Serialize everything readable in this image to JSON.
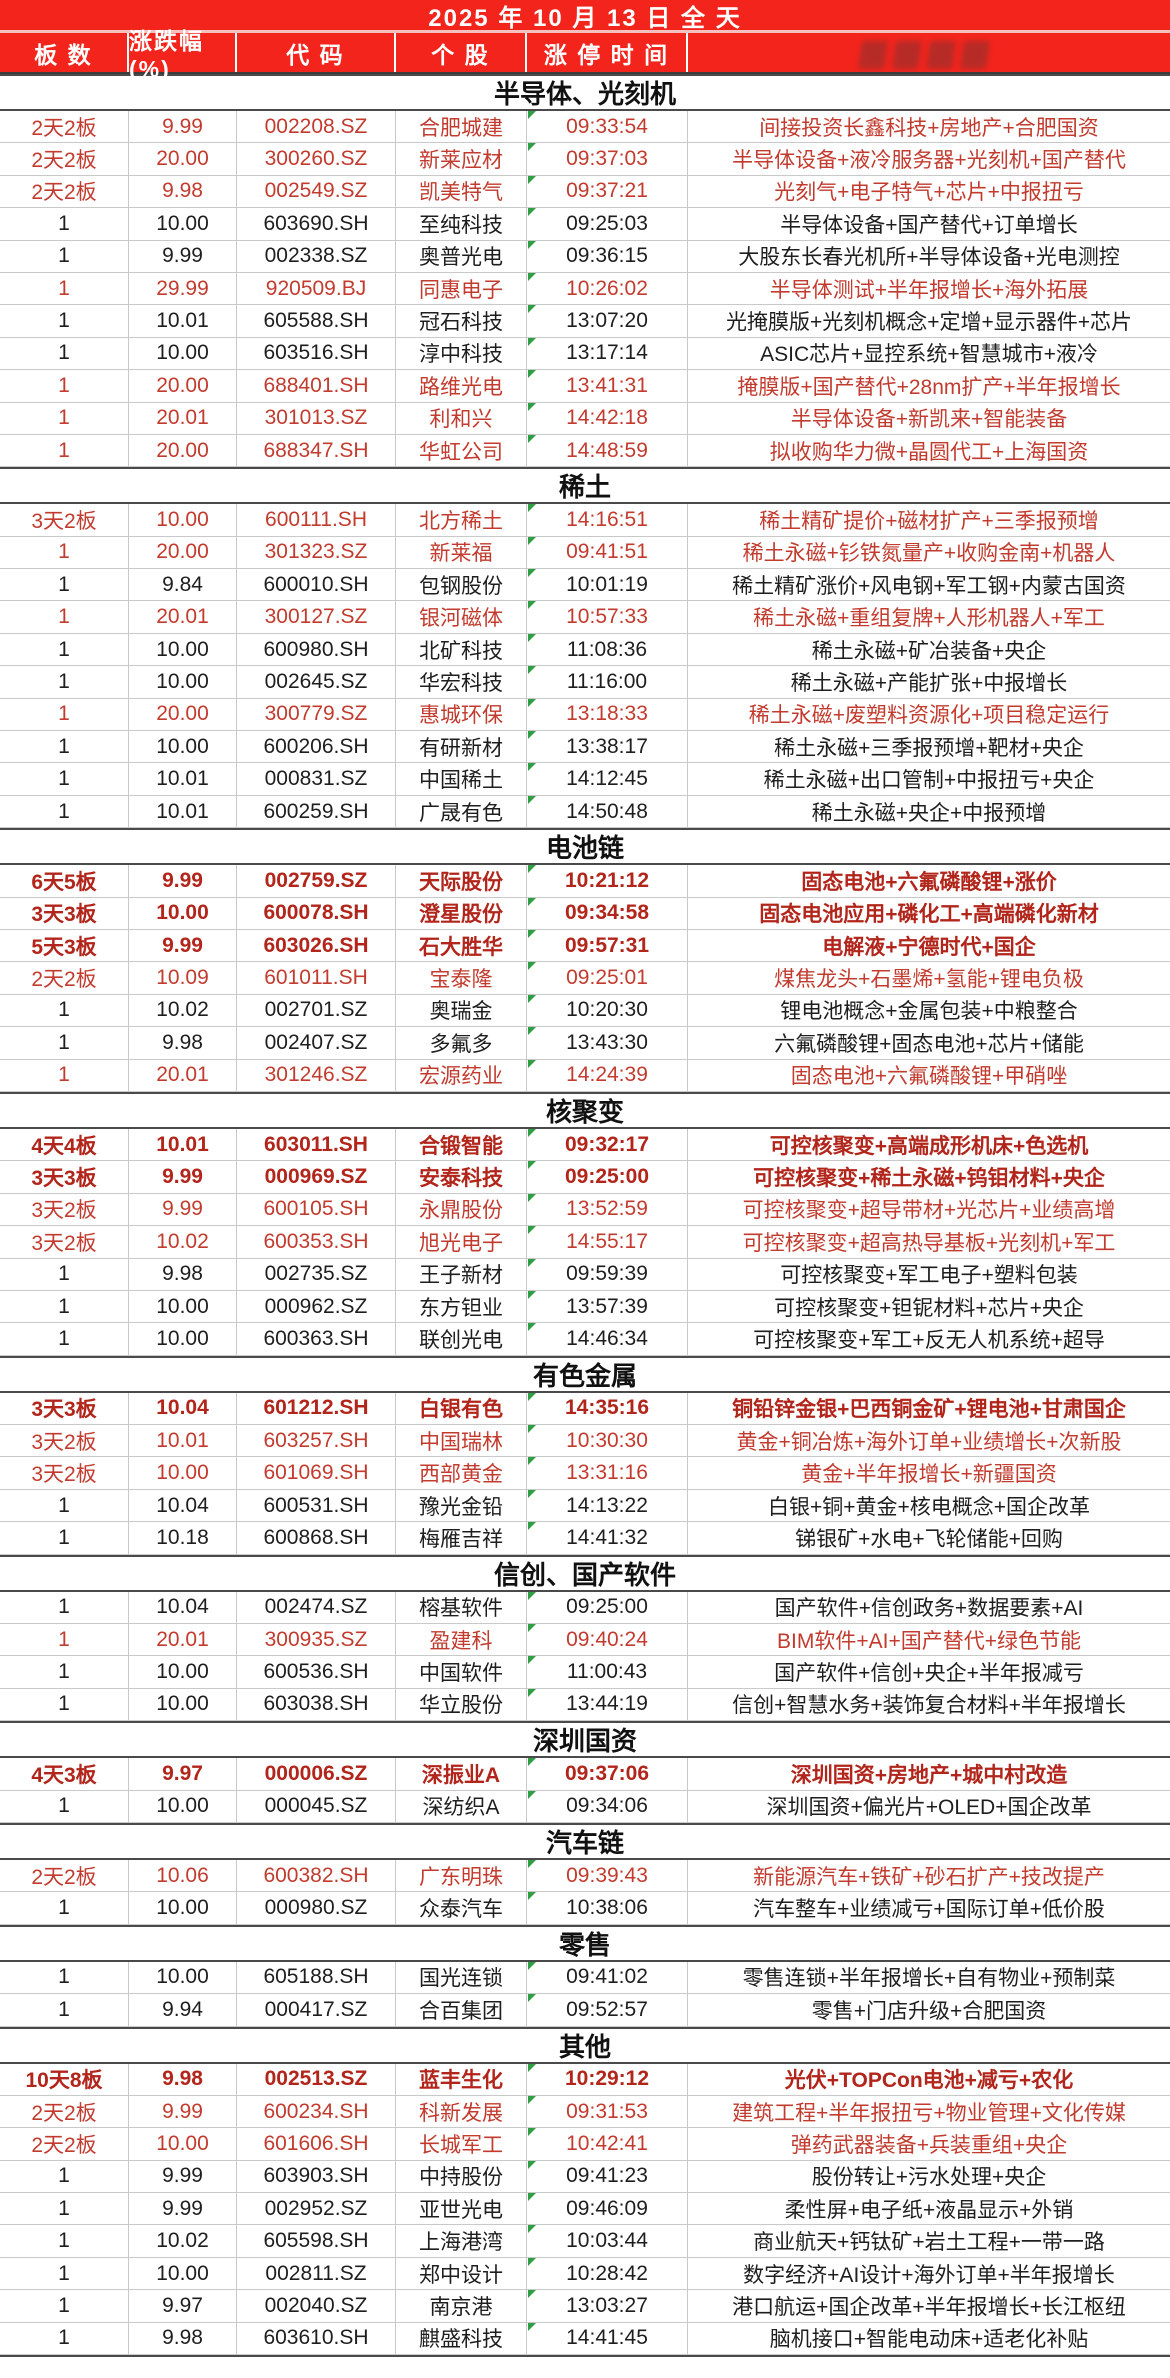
{
  "title": "2025 年 10 月 13 日 全 天",
  "columns": [
    "板 数",
    "涨跌幅(%)",
    "代 码",
    "个 股",
    "涨 停 时 间",
    ""
  ],
  "colors": {
    "header_bg": "#f3241c",
    "header_text": "#ffffff",
    "red_row_text": "#c23b2e",
    "red_bold_row_text": "#b2251b",
    "black_row_text": "#1e1e1e",
    "comment_marker_green": "#2f9e44"
  },
  "sections": [
    {
      "name": "半导体、光刻机",
      "rows": [
        {
          "board": "2天2板",
          "pct": "9.99",
          "code": "002208.SZ",
          "name": "合肥城建",
          "time": "09:33:54",
          "reason": "间接投资长鑫科技+房地产+合肥国资",
          "style": "red"
        },
        {
          "board": "2天2板",
          "pct": "20.00",
          "code": "300260.SZ",
          "name": "新莱应材",
          "time": "09:37:03",
          "reason": "半导体设备+液冷服务器+光刻机+国产替代",
          "style": "red"
        },
        {
          "board": "2天2板",
          "pct": "9.98",
          "code": "002549.SZ",
          "name": "凯美特气",
          "time": "09:37:21",
          "reason": "光刻气+电子特气+芯片+中报扭亏",
          "style": "red"
        },
        {
          "board": "1",
          "pct": "10.00",
          "code": "603690.SH",
          "name": "至纯科技",
          "time": "09:25:03",
          "reason": "半导体设备+国产替代+订单增长",
          "style": "black"
        },
        {
          "board": "1",
          "pct": "9.99",
          "code": "002338.SZ",
          "name": "奥普光电",
          "time": "09:36:15",
          "reason": "大股东长春光机所+半导体设备+光电测控",
          "style": "black"
        },
        {
          "board": "1",
          "pct": "29.99",
          "code": "920509.BJ",
          "name": "同惠电子",
          "time": "10:26:02",
          "reason": "半导体测试+半年报增长+海外拓展",
          "style": "red"
        },
        {
          "board": "1",
          "pct": "10.01",
          "code": "605588.SH",
          "name": "冠石科技",
          "time": "13:07:20",
          "reason": "光掩膜版+光刻机概念+定增+显示器件+芯片",
          "style": "black"
        },
        {
          "board": "1",
          "pct": "10.00",
          "code": "603516.SH",
          "name": "淳中科技",
          "time": "13:17:14",
          "reason": "ASIC芯片+显控系统+智慧城市+液冷",
          "style": "black"
        },
        {
          "board": "1",
          "pct": "20.00",
          "code": "688401.SH",
          "name": "路维光电",
          "time": "13:41:31",
          "reason": "掩膜版+国产替代+28nm扩产+半年报增长",
          "style": "red"
        },
        {
          "board": "1",
          "pct": "20.01",
          "code": "301013.SZ",
          "name": "利和兴",
          "time": "14:42:18",
          "reason": "半导体设备+新凯来+智能装备",
          "style": "red"
        },
        {
          "board": "1",
          "pct": "20.00",
          "code": "688347.SH",
          "name": "华虹公司",
          "time": "14:48:59",
          "reason": "拟收购华力微+晶圆代工+上海国资",
          "style": "red"
        }
      ]
    },
    {
      "name": "稀土",
      "rows": [
        {
          "board": "3天2板",
          "pct": "10.00",
          "code": "600111.SH",
          "name": "北方稀土",
          "time": "14:16:51",
          "reason": "稀土精矿提价+磁材扩产+三季报预增",
          "style": "red"
        },
        {
          "board": "1",
          "pct": "20.00",
          "code": "301323.SZ",
          "name": "新莱福",
          "time": "09:41:51",
          "reason": "稀土永磁+钐铁氮量产+收购金南+机器人",
          "style": "red"
        },
        {
          "board": "1",
          "pct": "9.84",
          "code": "600010.SH",
          "name": "包钢股份",
          "time": "10:01:19",
          "reason": "稀土精矿涨价+风电钢+军工钢+内蒙古国资",
          "style": "black"
        },
        {
          "board": "1",
          "pct": "20.01",
          "code": "300127.SZ",
          "name": "银河磁体",
          "time": "10:57:33",
          "reason": "稀土永磁+重组复牌+人形机器人+军工",
          "style": "red"
        },
        {
          "board": "1",
          "pct": "10.00",
          "code": "600980.SH",
          "name": "北矿科技",
          "time": "11:08:36",
          "reason": "稀土永磁+矿冶装备+央企",
          "style": "black"
        },
        {
          "board": "1",
          "pct": "10.00",
          "code": "002645.SZ",
          "name": "华宏科技",
          "time": "11:16:00",
          "reason": "稀土永磁+产能扩张+中报增长",
          "style": "black"
        },
        {
          "board": "1",
          "pct": "20.00",
          "code": "300779.SZ",
          "name": "惠城环保",
          "time": "13:18:33",
          "reason": "稀土永磁+废塑料资源化+项目稳定运行",
          "style": "red"
        },
        {
          "board": "1",
          "pct": "10.00",
          "code": "600206.SH",
          "name": "有研新材",
          "time": "13:38:17",
          "reason": "稀土永磁+三季报预增+靶材+央企",
          "style": "black"
        },
        {
          "board": "1",
          "pct": "10.01",
          "code": "000831.SZ",
          "name": "中国稀土",
          "time": "14:12:45",
          "reason": "稀土永磁+出口管制+中报扭亏+央企",
          "style": "black"
        },
        {
          "board": "1",
          "pct": "10.01",
          "code": "600259.SH",
          "name": "广晟有色",
          "time": "14:50:48",
          "reason": "稀土永磁+央企+中报预增",
          "style": "black"
        }
      ]
    },
    {
      "name": "电池链",
      "rows": [
        {
          "board": "6天5板",
          "pct": "9.99",
          "code": "002759.SZ",
          "name": "天际股份",
          "time": "10:21:12",
          "reason": "固态电池+六氟磷酸锂+涨价",
          "style": "red-bold"
        },
        {
          "board": "3天3板",
          "pct": "10.00",
          "code": "600078.SH",
          "name": "澄星股份",
          "time": "09:34:58",
          "reason": "固态电池应用+磷化工+高端磷化新材",
          "style": "red-bold"
        },
        {
          "board": "5天3板",
          "pct": "9.99",
          "code": "603026.SH",
          "name": "石大胜华",
          "time": "09:57:31",
          "reason": "电解液+宁德时代+国企",
          "style": "red-bold"
        },
        {
          "board": "2天2板",
          "pct": "10.09",
          "code": "601011.SH",
          "name": "宝泰隆",
          "time": "09:25:01",
          "reason": "煤焦龙头+石墨烯+氢能+锂电负极",
          "style": "red"
        },
        {
          "board": "1",
          "pct": "10.02",
          "code": "002701.SZ",
          "name": "奥瑞金",
          "time": "10:20:30",
          "reason": "锂电池概念+金属包装+中粮整合",
          "style": "black"
        },
        {
          "board": "1",
          "pct": "9.98",
          "code": "002407.SZ",
          "name": "多氟多",
          "time": "13:43:30",
          "reason": "六氟磷酸锂+固态电池+芯片+储能",
          "style": "black"
        },
        {
          "board": "1",
          "pct": "20.01",
          "code": "301246.SZ",
          "name": "宏源药业",
          "time": "14:24:39",
          "reason": "固态电池+六氟磷酸锂+甲硝唑",
          "style": "red"
        }
      ]
    },
    {
      "name": "核聚变",
      "rows": [
        {
          "board": "4天4板",
          "pct": "10.01",
          "code": "603011.SH",
          "name": "合锻智能",
          "time": "09:32:17",
          "reason": "可控核聚变+高端成形机床+色选机",
          "style": "red-bold"
        },
        {
          "board": "3天3板",
          "pct": "9.99",
          "code": "000969.SZ",
          "name": "安泰科技",
          "time": "09:25:00",
          "reason": "可控核聚变+稀土永磁+钨钼材料+央企",
          "style": "red-bold"
        },
        {
          "board": "3天2板",
          "pct": "9.99",
          "code": "600105.SH",
          "name": "永鼎股份",
          "time": "13:52:59",
          "reason": "可控核聚变+超导带材+光芯片+业绩高增",
          "style": "red"
        },
        {
          "board": "3天2板",
          "pct": "10.02",
          "code": "600353.SH",
          "name": "旭光电子",
          "time": "14:55:17",
          "reason": "可控核聚变+超高热导基板+光刻机+军工",
          "style": "red"
        },
        {
          "board": "1",
          "pct": "9.98",
          "code": "002735.SZ",
          "name": "王子新材",
          "time": "09:59:39",
          "reason": "可控核聚变+军工电子+塑料包装",
          "style": "black"
        },
        {
          "board": "1",
          "pct": "10.00",
          "code": "000962.SZ",
          "name": "东方钽业",
          "time": "13:57:39",
          "reason": "可控核聚变+钽铌材料+芯片+央企",
          "style": "black"
        },
        {
          "board": "1",
          "pct": "10.00",
          "code": "600363.SH",
          "name": "联创光电",
          "time": "14:46:34",
          "reason": "可控核聚变+军工+反无人机系统+超导",
          "style": "black"
        }
      ]
    },
    {
      "name": "有色金属",
      "rows": [
        {
          "board": "3天3板",
          "pct": "10.04",
          "code": "601212.SH",
          "name": "白银有色",
          "time": "14:35:16",
          "reason": "铜铅锌金银+巴西铜金矿+锂电池+甘肃国企",
          "style": "red-bold"
        },
        {
          "board": "3天2板",
          "pct": "10.01",
          "code": "603257.SH",
          "name": "中国瑞林",
          "time": "10:30:30",
          "reason": "黄金+铜冶炼+海外订单+业绩增长+次新股",
          "style": "red"
        },
        {
          "board": "3天2板",
          "pct": "10.00",
          "code": "601069.SH",
          "name": "西部黄金",
          "time": "13:31:16",
          "reason": "黄金+半年报增长+新疆国资",
          "style": "red"
        },
        {
          "board": "1",
          "pct": "10.04",
          "code": "600531.SH",
          "name": "豫光金铅",
          "time": "14:13:22",
          "reason": "白银+铜+黄金+核电概念+国企改革",
          "style": "black"
        },
        {
          "board": "1",
          "pct": "10.18",
          "code": "600868.SH",
          "name": "梅雁吉祥",
          "time": "14:41:32",
          "reason": "锑银矿+水电+飞轮储能+回购",
          "style": "black"
        }
      ]
    },
    {
      "name": "信创、国产软件",
      "rows": [
        {
          "board": "1",
          "pct": "10.04",
          "code": "002474.SZ",
          "name": "榕基软件",
          "time": "09:25:00",
          "reason": "国产软件+信创政务+数据要素+AI",
          "style": "black"
        },
        {
          "board": "1",
          "pct": "20.01",
          "code": "300935.SZ",
          "name": "盈建科",
          "time": "09:40:24",
          "reason": "BIM软件+AI+国产替代+绿色节能",
          "style": "red"
        },
        {
          "board": "1",
          "pct": "10.00",
          "code": "600536.SH",
          "name": "中国软件",
          "time": "11:00:43",
          "reason": "国产软件+信创+央企+半年报减亏",
          "style": "black"
        },
        {
          "board": "1",
          "pct": "10.00",
          "code": "603038.SH",
          "name": "华立股份",
          "time": "13:44:19",
          "reason": "信创+智慧水务+装饰复合材料+半年报增长",
          "style": "black"
        }
      ]
    },
    {
      "name": "深圳国资",
      "rows": [
        {
          "board": "4天3板",
          "pct": "9.97",
          "code": "000006.SZ",
          "name": "深振业A",
          "time": "09:37:06",
          "reason": "深圳国资+房地产+城中村改造",
          "style": "red-bold"
        },
        {
          "board": "1",
          "pct": "10.00",
          "code": "000045.SZ",
          "name": "深纺织A",
          "time": "09:34:06",
          "reason": "深圳国资+偏光片+OLED+国企改革",
          "style": "black"
        }
      ]
    },
    {
      "name": "汽车链",
      "rows": [
        {
          "board": "2天2板",
          "pct": "10.06",
          "code": "600382.SH",
          "name": "广东明珠",
          "time": "09:39:43",
          "reason": "新能源汽车+铁矿+砂石扩产+技改提产",
          "style": "red"
        },
        {
          "board": "1",
          "pct": "10.00",
          "code": "000980.SZ",
          "name": "众泰汽车",
          "time": "10:38:06",
          "reason": "汽车整车+业绩减亏+国际订单+低价股",
          "style": "black"
        }
      ]
    },
    {
      "name": "零售",
      "rows": [
        {
          "board": "1",
          "pct": "10.00",
          "code": "605188.SH",
          "name": "国光连锁",
          "time": "09:41:02",
          "reason": "零售连锁+半年报增长+自有物业+预制菜",
          "style": "black"
        },
        {
          "board": "1",
          "pct": "9.94",
          "code": "000417.SZ",
          "name": "合百集团",
          "time": "09:52:57",
          "reason": "零售+门店升级+合肥国资",
          "style": "black"
        }
      ]
    },
    {
      "name": "其他",
      "rows": [
        {
          "board": "10天8板",
          "pct": "9.98",
          "code": "002513.SZ",
          "name": "蓝丰生化",
          "time": "10:29:12",
          "reason": "光伏+TOPCon电池+减亏+农化",
          "style": "red-bold"
        },
        {
          "board": "2天2板",
          "pct": "9.99",
          "code": "600234.SH",
          "name": "科新发展",
          "time": "09:31:53",
          "reason": "建筑工程+半年报扭亏+物业管理+文化传媒",
          "style": "red"
        },
        {
          "board": "2天2板",
          "pct": "10.00",
          "code": "601606.SH",
          "name": "长城军工",
          "time": "10:42:41",
          "reason": "弹药武器装备+兵装重组+央企",
          "style": "red"
        },
        {
          "board": "1",
          "pct": "9.99",
          "code": "603903.SH",
          "name": "中持股份",
          "time": "09:41:23",
          "reason": "股份转让+污水处理+央企",
          "style": "black"
        },
        {
          "board": "1",
          "pct": "9.99",
          "code": "002952.SZ",
          "name": "亚世光电",
          "time": "09:46:09",
          "reason": "柔性屏+电子纸+液晶显示+外销",
          "style": "black"
        },
        {
          "board": "1",
          "pct": "10.02",
          "code": "605598.SH",
          "name": "上海港湾",
          "time": "10:03:44",
          "reason": "商业航天+钙钛矿+岩土工程+一带一路",
          "style": "black"
        },
        {
          "board": "1",
          "pct": "10.00",
          "code": "002811.SZ",
          "name": "郑中设计",
          "time": "10:28:42",
          "reason": "数字经济+AI设计+海外订单+半年报增长",
          "style": "black"
        },
        {
          "board": "1",
          "pct": "9.97",
          "code": "002040.SZ",
          "name": "南京港",
          "time": "13:03:27",
          "reason": "港口航运+国企改革+半年报增长+长江枢纽",
          "style": "black"
        },
        {
          "board": "1",
          "pct": "9.98",
          "code": "603610.SH",
          "name": "麒盛科技",
          "time": "14:41:45",
          "reason": "脑机接口+智能电动床+适老化补贴",
          "style": "black"
        }
      ]
    }
  ]
}
